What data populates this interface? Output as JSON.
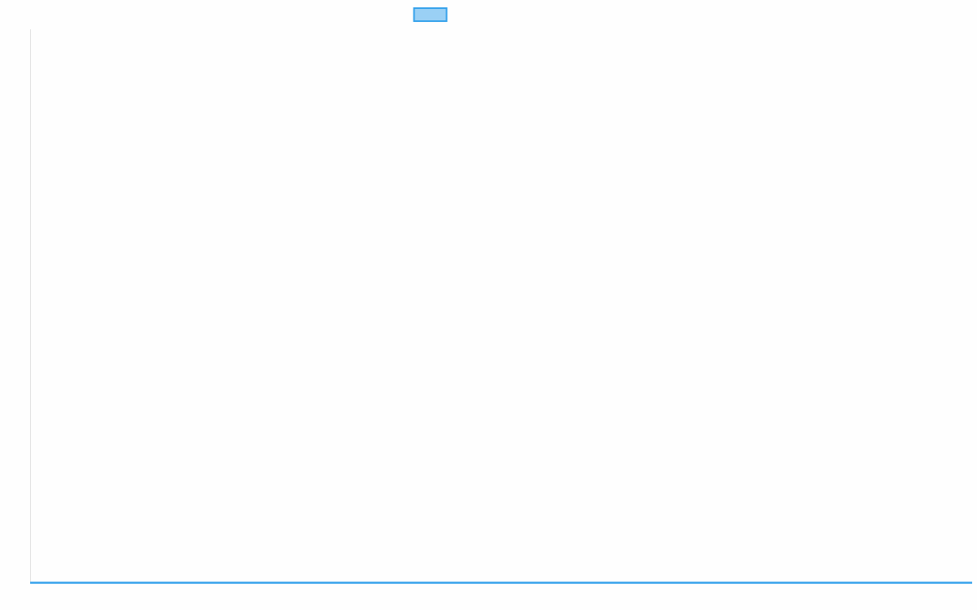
{
  "chart_data": {
    "type": "line",
    "title": "",
    "xlabel": "",
    "ylabel": "",
    "legend": "top",
    "grid": false,
    "series": [
      {
        "color": "#36a2eb",
        "fill": "#9ad0f5"
      }
    ]
  }
}
